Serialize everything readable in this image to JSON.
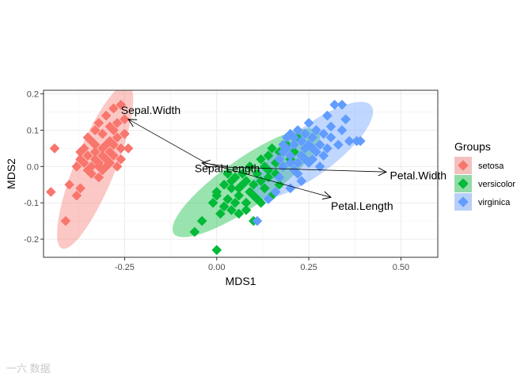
{
  "chart_data": {
    "type": "scatter",
    "title": "",
    "xlabel": "MDS1",
    "ylabel": "MDS2",
    "xlim": [
      -0.47,
      0.6
    ],
    "ylim": [
      -0.25,
      0.21
    ],
    "x_ticks": [
      -0.25,
      0.0,
      0.25,
      0.5
    ],
    "x_tick_labels": [
      "-0.25",
      "0.00",
      "0.25",
      "0.50"
    ],
    "y_ticks": [
      -0.2,
      -0.1,
      0.0,
      0.1,
      0.2
    ],
    "y_tick_labels": [
      "-0.2",
      "-0.1",
      "0.0",
      "0.1",
      "0.2"
    ],
    "grid": true,
    "legend": {
      "title": "Groups",
      "position": "right"
    },
    "series": [
      {
        "name": "setosa",
        "color": "#F8766D",
        "ellipse": {
          "cx": -0.33,
          "cy": 0.0,
          "rx": 0.24,
          "ry": 0.055,
          "angle_deg": 68
        },
        "points": [
          [
            -0.44,
            0.05
          ],
          [
            -0.45,
            -0.07
          ],
          [
            -0.41,
            -0.15
          ],
          [
            -0.4,
            -0.05
          ],
          [
            -0.38,
            -0.08
          ],
          [
            -0.37,
            -0.06
          ],
          [
            -0.38,
            0.0
          ],
          [
            -0.37,
            0.02
          ],
          [
            -0.36,
            0.05
          ],
          [
            -0.35,
            0.03
          ],
          [
            -0.35,
            0.08
          ],
          [
            -0.34,
            -0.02
          ],
          [
            -0.34,
            0.0
          ],
          [
            -0.33,
            0.04
          ],
          [
            -0.33,
            0.06
          ],
          [
            -0.32,
            -0.03
          ],
          [
            -0.32,
            0.01
          ],
          [
            -0.32,
            0.12
          ],
          [
            -0.31,
            0.05
          ],
          [
            -0.31,
            0.09
          ],
          [
            -0.3,
            0.0
          ],
          [
            -0.3,
            0.02
          ],
          [
            -0.3,
            0.14
          ],
          [
            -0.29,
            0.04
          ],
          [
            -0.29,
            0.07
          ],
          [
            -0.28,
            0.1
          ],
          [
            -0.28,
            0.16
          ],
          [
            -0.27,
            0.12
          ],
          [
            -0.27,
            0.0
          ],
          [
            -0.26,
            0.05
          ],
          [
            -0.26,
            0.17
          ],
          [
            -0.25,
            0.09
          ],
          [
            -0.25,
            0.13
          ],
          [
            -0.24,
            0.05
          ],
          [
            -0.36,
            0.01
          ],
          [
            -0.31,
            0.03
          ],
          [
            -0.33,
            0.02
          ],
          [
            -0.29,
            0.01
          ],
          [
            -0.35,
            -0.01
          ],
          [
            -0.28,
            0.03
          ],
          [
            -0.3,
            0.06
          ],
          [
            -0.34,
            0.07
          ],
          [
            -0.27,
            0.08
          ],
          [
            -0.32,
            0.0
          ],
          [
            -0.37,
            0.04
          ],
          [
            -0.26,
            0.02
          ],
          [
            -0.31,
            -0.01
          ],
          [
            -0.28,
            0.06
          ],
          [
            -0.33,
            0.1
          ],
          [
            -0.29,
            0.11
          ]
        ]
      },
      {
        "name": "versicolor",
        "color": "#00BA38",
        "ellipse": {
          "cx": 0.08,
          "cy": -0.045,
          "rx": 0.24,
          "ry": 0.065,
          "angle_deg": 35
        },
        "points": [
          [
            -0.04,
            -0.15
          ],
          [
            -0.06,
            -0.18
          ],
          [
            0.0,
            -0.23
          ],
          [
            -0.01,
            -0.1
          ],
          [
            0.0,
            -0.08
          ],
          [
            0.01,
            -0.13
          ],
          [
            0.02,
            -0.11
          ],
          [
            0.02,
            -0.05
          ],
          [
            0.03,
            -0.09
          ],
          [
            0.04,
            -0.12
          ],
          [
            0.04,
            -0.06
          ],
          [
            0.05,
            -0.1
          ],
          [
            0.05,
            -0.03
          ],
          [
            0.06,
            -0.08
          ],
          [
            0.06,
            -0.13
          ],
          [
            0.07,
            -0.05
          ],
          [
            0.07,
            -0.02
          ],
          [
            0.08,
            -0.1
          ],
          [
            0.08,
            -0.04
          ],
          [
            0.09,
            -0.07
          ],
          [
            0.09,
            0.0
          ],
          [
            0.1,
            -0.15
          ],
          [
            0.1,
            -0.05
          ],
          [
            0.11,
            -0.02
          ],
          [
            0.11,
            -0.09
          ],
          [
            0.12,
            0.02
          ],
          [
            0.12,
            -0.04
          ],
          [
            0.13,
            -0.06
          ],
          [
            0.13,
            0.0
          ],
          [
            0.14,
            0.03
          ],
          [
            0.14,
            -0.03
          ],
          [
            0.15,
            -0.08
          ],
          [
            0.15,
            0.05
          ],
          [
            0.16,
            0.01
          ],
          [
            0.16,
            -0.02
          ],
          [
            0.17,
            0.04
          ],
          [
            0.17,
            -0.05
          ],
          [
            0.18,
            0.0
          ],
          [
            0.19,
            0.06
          ],
          [
            0.2,
            0.02
          ],
          [
            0.21,
            0.04
          ],
          [
            0.22,
            0.08
          ],
          [
            0.03,
            -0.02
          ],
          [
            0.06,
            -0.06
          ],
          [
            0.08,
            -0.12
          ],
          [
            0.1,
            -0.08
          ],
          [
            0.12,
            -0.1
          ],
          [
            0.0,
            -0.07
          ],
          [
            0.04,
            -0.04
          ],
          [
            0.14,
            -0.01
          ]
        ]
      },
      {
        "name": "virginica",
        "color": "#619CFF",
        "ellipse": {
          "cx": 0.26,
          "cy": 0.045,
          "rx": 0.2,
          "ry": 0.065,
          "angle_deg": 37
        },
        "points": [
          [
            0.11,
            -0.15
          ],
          [
            0.14,
            -0.09
          ],
          [
            0.16,
            -0.07
          ],
          [
            0.17,
            -0.03
          ],
          [
            0.18,
            0.0
          ],
          [
            0.18,
            0.04
          ],
          [
            0.19,
            0.08
          ],
          [
            0.2,
            -0.06
          ],
          [
            0.2,
            0.01
          ],
          [
            0.21,
            0.06
          ],
          [
            0.22,
            -0.02
          ],
          [
            0.22,
            0.1
          ],
          [
            0.23,
            0.03
          ],
          [
            0.23,
            0.07
          ],
          [
            0.24,
            0.05
          ],
          [
            0.25,
            0.01
          ],
          [
            0.25,
            0.12
          ],
          [
            0.26,
            0.08
          ],
          [
            0.27,
            0.04
          ],
          [
            0.28,
            0.06
          ],
          [
            0.28,
            0.0
          ],
          [
            0.29,
            0.09
          ],
          [
            0.3,
            0.14
          ],
          [
            0.31,
            0.08
          ],
          [
            0.32,
            0.17
          ],
          [
            0.33,
            0.06
          ],
          [
            0.34,
            0.17
          ],
          [
            0.34,
            0.1
          ],
          [
            0.35,
            0.13
          ],
          [
            0.36,
            0.07
          ],
          [
            0.38,
            0.07
          ],
          [
            0.39,
            0.07
          ],
          [
            0.2,
            0.03
          ],
          [
            0.21,
            -0.01
          ],
          [
            0.24,
            0.02
          ],
          [
            0.26,
            0.05
          ],
          [
            0.19,
            0.05
          ],
          [
            0.22,
            0.01
          ],
          [
            0.27,
            0.1
          ],
          [
            0.23,
            -0.04
          ],
          [
            0.25,
            0.06
          ],
          [
            0.3,
            0.05
          ],
          [
            0.24,
            0.09
          ],
          [
            0.21,
            0.08
          ],
          [
            0.18,
            0.06
          ],
          [
            0.17,
            0.02
          ],
          [
            0.29,
            0.03
          ],
          [
            0.26,
            0.02
          ],
          [
            0.31,
            0.11
          ],
          [
            0.2,
            0.09
          ]
        ]
      }
    ],
    "arrows": [
      {
        "label": "Sepal.Width",
        "x0": -0.03,
        "y0": 0.01,
        "x1": -0.24,
        "y1": 0.13,
        "lx": -0.26,
        "ly": 0.155
      },
      {
        "label": "Sepal.Length",
        "x0": 0.03,
        "y0": 0.0,
        "x1": -0.04,
        "y1": 0.01,
        "lx": -0.06,
        "ly": -0.005
      },
      {
        "label": "Petal.Width",
        "x0": -0.03,
        "y0": 0.0,
        "x1": 0.46,
        "y1": -0.015,
        "lx": 0.47,
        "ly": -0.024
      },
      {
        "label": "Petal.Length",
        "x0": -0.03,
        "y0": 0.01,
        "x1": 0.31,
        "y1": -0.085,
        "lx": 0.31,
        "ly": -0.108
      }
    ]
  },
  "watermark": "一六 数据"
}
